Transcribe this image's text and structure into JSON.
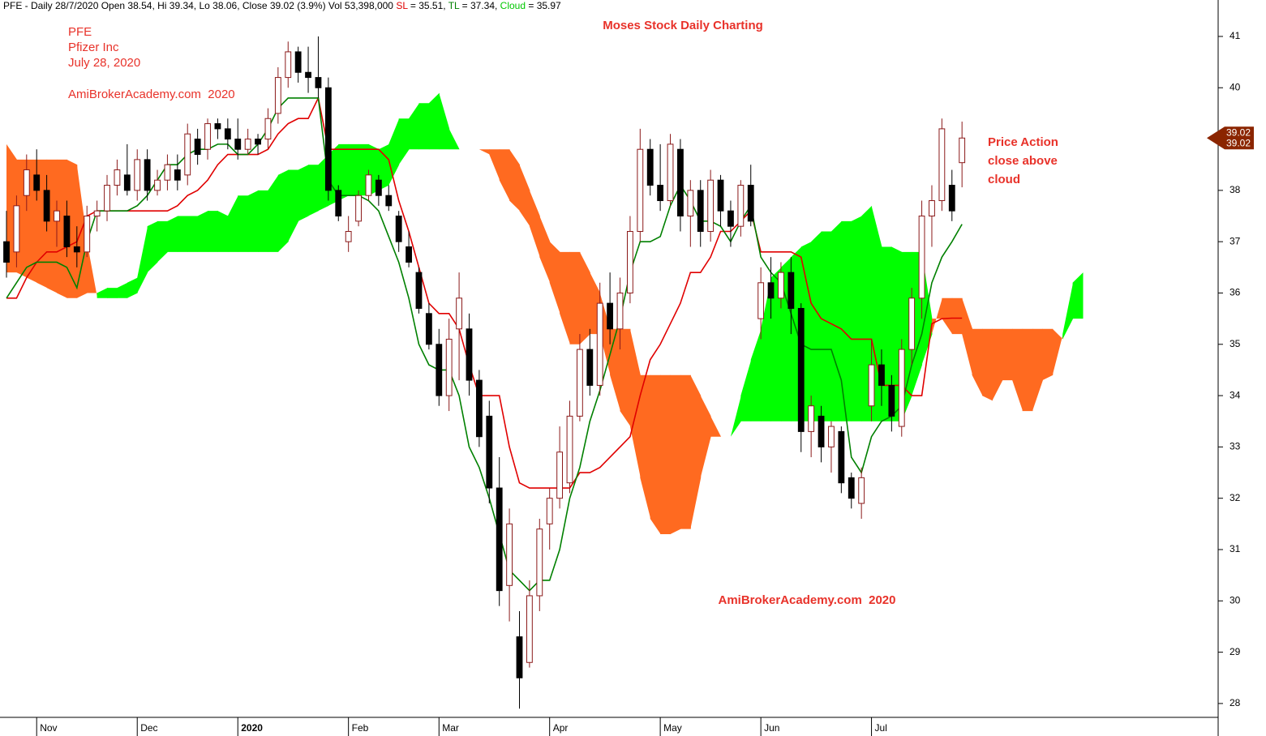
{
  "chart_data": {
    "type": "candlestick",
    "title": "Moses Stock Daily Charting",
    "header": [
      {
        "text": "PFE - Daily 28/7/2020 Open 38.54, Hi 39.34, Lo 38.06, Close 39.02 (3.9%) Vol 53,398,000 ",
        "color": "#000000"
      },
      {
        "text": "SL",
        "color": "#e00000"
      },
      {
        "text": " = 35.51, ",
        "color": "#000000"
      },
      {
        "text": "TL",
        "color": "#008000"
      },
      {
        "text": " = 37.34, ",
        "color": "#000000"
      },
      {
        "text": "Cloud",
        "color": "#00c800"
      },
      {
        "text": " = 35.97",
        "color": "#000000"
      }
    ],
    "annotations": [
      "PFE",
      "Pfizer Inc",
      "July 28, 2020",
      "AmiBrokerAcademy.com  2020",
      "AmiBrokerAcademy.com  2020",
      "Price Action",
      "close above",
      "cloud"
    ],
    "categories": [
      null,
      null,
      null,
      "Nov",
      null,
      null,
      null,
      null,
      null,
      null,
      null,
      null,
      null,
      "Dec",
      null,
      null,
      null,
      null,
      null,
      null,
      null,
      null,
      null,
      "2020",
      null,
      null,
      null,
      null,
      null,
      null,
      null,
      null,
      null,
      null,
      "Feb",
      null,
      null,
      null,
      null,
      null,
      null,
      null,
      null,
      "Mar",
      null,
      null,
      null,
      null,
      null,
      null,
      null,
      null,
      null,
      null,
      "Apr",
      null,
      null,
      null,
      null,
      null,
      null,
      null,
      null,
      null,
      null,
      "May",
      null,
      null,
      null,
      null,
      null,
      null,
      null,
      null,
      null,
      "Jun",
      null,
      null,
      null,
      null,
      null,
      null,
      null,
      null,
      null,
      null,
      "Jul",
      null,
      null,
      null,
      null,
      null,
      null,
      null,
      null,
      null,
      null,
      null,
      null,
      null,
      null,
      null,
      null,
      null,
      null,
      null,
      null,
      null
    ],
    "open": [
      37.0,
      36.8,
      37.9,
      38.3,
      38.0,
      37.4,
      37.5,
      36.9,
      36.8,
      37.5,
      37.6,
      38.1,
      38.3,
      38.0,
      38.6,
      38.0,
      38.2,
      38.4,
      38.3,
      39.0,
      38.8,
      39.3,
      39.2,
      39.0,
      38.8,
      39.0,
      39.0,
      39.5,
      40.2,
      40.7,
      40.3,
      40.2,
      40.0,
      38.0,
      37.0,
      37.4,
      37.9,
      38.2,
      37.9,
      37.5,
      36.9,
      36.4,
      35.6,
      35.0,
      34.0,
      35.3,
      35.3,
      34.3,
      33.6,
      32.2,
      30.3,
      29.3,
      28.8,
      30.1,
      31.5,
      32.0,
      32.3,
      33.6,
      34.9,
      34.2,
      35.8,
      35.3,
      36.0,
      37.2,
      38.8,
      38.1,
      37.8,
      38.8,
      37.5,
      38.0,
      37.2,
      38.2,
      37.6,
      37.3,
      38.1,
      35.5,
      36.2,
      35.9,
      36.4,
      35.7,
      33.3,
      33.6,
      33.0,
      33.3,
      32.4,
      31.9,
      33.8,
      34.6,
      34.2,
      33.4,
      34.9,
      35.9,
      37.5,
      37.8,
      38.1,
      38.54,
      null,
      null,
      null,
      null,
      null,
      null,
      null,
      null,
      null,
      null,
      null,
      null
    ],
    "high": [
      37.6,
      37.9,
      38.7,
      38.8,
      38.3,
      37.8,
      37.8,
      37.3,
      37.7,
      37.8,
      38.3,
      38.6,
      38.9,
      38.8,
      38.8,
      38.4,
      38.7,
      38.7,
      39.3,
      39.2,
      39.4,
      39.4,
      39.4,
      39.4,
      39.2,
      39.1,
      39.6,
      40.4,
      40.9,
      40.8,
      40.8,
      41.0,
      40.2,
      38.1,
      37.5,
      38.0,
      38.4,
      38.3,
      38.1,
      37.6,
      37.2,
      36.5,
      35.8,
      35.3,
      35.5,
      36.4,
      35.6,
      34.5,
      33.9,
      32.8,
      31.8,
      29.8,
      30.4,
      31.6,
      32.2,
      33.4,
      33.9,
      35.2,
      35.3,
      36.2,
      36.4,
      36.3,
      37.5,
      39.2,
      39.0,
      38.9,
      39.1,
      39.0,
      38.2,
      38.2,
      38.4,
      38.3,
      37.8,
      38.2,
      38.5,
      36.5,
      36.7,
      36.6,
      36.7,
      35.8,
      34.0,
      33.8,
      33.5,
      33.4,
      32.5,
      32.6,
      35.1,
      34.9,
      34.4,
      35.1,
      36.1,
      37.8,
      38.1,
      39.4,
      38.4,
      39.34,
      null,
      null,
      null,
      null,
      null,
      null,
      null,
      null,
      null,
      null,
      null,
      null
    ],
    "low": [
      36.3,
      36.5,
      37.6,
      37.8,
      37.2,
      36.9,
      36.7,
      36.5,
      36.7,
      37.2,
      37.4,
      37.9,
      37.9,
      37.8,
      37.8,
      37.9,
      38.0,
      38.0,
      38.1,
      38.5,
      38.6,
      39.0,
      38.8,
      38.6,
      38.7,
      38.7,
      38.8,
      39.3,
      40.0,
      40.1,
      39.9,
      39.8,
      37.8,
      37.4,
      36.8,
      37.3,
      37.8,
      37.7,
      37.6,
      36.8,
      36.5,
      35.6,
      34.9,
      33.8,
      33.7,
      34.3,
      34.0,
      33.0,
      31.9,
      29.9,
      29.6,
      27.9,
      28.7,
      29.8,
      31.0,
      31.8,
      32.1,
      33.5,
      34.0,
      34.0,
      35.0,
      34.9,
      35.8,
      37.0,
      37.9,
      37.6,
      37.7,
      37.2,
      36.9,
      36.9,
      37.0,
      37.3,
      36.9,
      37.1,
      37.3,
      35.1,
      35.5,
      35.7,
      35.2,
      32.9,
      32.8,
      32.7,
      32.5,
      32.1,
      31.8,
      31.6,
      33.5,
      33.8,
      33.3,
      33.2,
      34.6,
      35.5,
      36.9,
      37.6,
      37.4,
      38.06,
      null,
      null,
      null,
      null,
      null,
      null,
      null,
      null,
      null,
      null,
      null,
      null
    ],
    "close": [
      36.6,
      37.7,
      38.4,
      38.0,
      37.4,
      37.6,
      36.9,
      36.8,
      37.5,
      37.6,
      38.1,
      38.4,
      38.0,
      38.6,
      38.0,
      38.2,
      38.5,
      38.2,
      39.1,
      38.7,
      39.3,
      39.2,
      39.0,
      38.8,
      39.0,
      38.9,
      39.4,
      40.2,
      40.7,
      40.3,
      40.2,
      40.0,
      38.0,
      37.5,
      37.2,
      37.9,
      38.3,
      37.9,
      37.7,
      37.0,
      36.6,
      35.7,
      35.0,
      34.0,
      35.1,
      35.9,
      34.3,
      33.2,
      32.2,
      30.2,
      31.5,
      28.5,
      30.1,
      31.4,
      32.0,
      32.9,
      33.6,
      34.9,
      34.2,
      35.8,
      35.3,
      36.0,
      37.2,
      38.8,
      38.1,
      37.8,
      38.9,
      37.5,
      38.0,
      37.2,
      38.2,
      37.6,
      37.3,
      38.1,
      37.4,
      36.2,
      35.9,
      36.4,
      35.7,
      33.3,
      33.8,
      33.0,
      33.4,
      32.3,
      32.0,
      32.4,
      34.6,
      34.2,
      33.6,
      34.9,
      35.9,
      37.5,
      37.8,
      39.2,
      37.6,
      39.02,
      null,
      null,
      null,
      null,
      null,
      null,
      null,
      null,
      null,
      null,
      null,
      null
    ],
    "up_color": "#8b1a1a",
    "down_color": "#000000",
    "lines": [
      {
        "color": "#e00000",
        "values": [
          35.9,
          35.9,
          36.3,
          36.6,
          36.8,
          36.8,
          36.9,
          37.0,
          37.5,
          37.6,
          37.6,
          37.6,
          37.6,
          37.6,
          37.6,
          37.6,
          37.6,
          37.7,
          37.9,
          38.0,
          38.2,
          38.5,
          38.7,
          38.7,
          38.7,
          38.7,
          38.8,
          39.1,
          39.3,
          39.4,
          39.4,
          39.8,
          38.8,
          38.8,
          38.8,
          38.8,
          38.8,
          38.8,
          38.6,
          37.8,
          37.2,
          36.5,
          35.8,
          35.6,
          35.6,
          35.3,
          34.6,
          34.0,
          34.0,
          34.0,
          33.0,
          32.3,
          32.2,
          32.2,
          32.2,
          32.2,
          32.2,
          32.5,
          32.5,
          32.6,
          32.8,
          33.0,
          33.2,
          34.0,
          34.7,
          35.0,
          35.4,
          35.8,
          36.4,
          36.4,
          36.7,
          37.2,
          37.2,
          37.4,
          37.6,
          36.8,
          36.8,
          36.8,
          36.8,
          36.7,
          35.8,
          35.5,
          35.4,
          35.3,
          35.1,
          35.1,
          35.1,
          34.2,
          34.2,
          34.2,
          34.0,
          34.0,
          35.4,
          35.5,
          35.51,
          35.51,
          null,
          null,
          null,
          null,
          null,
          null,
          null,
          null,
          null,
          null,
          null,
          null
        ]
      },
      {
        "color": "#008000",
        "values": [
          35.9,
          36.2,
          36.5,
          36.6,
          36.6,
          36.6,
          36.5,
          36.1,
          37.0,
          37.6,
          37.6,
          37.6,
          37.6,
          37.7,
          37.9,
          38.2,
          38.5,
          38.5,
          38.7,
          38.8,
          38.8,
          38.9,
          38.9,
          38.7,
          38.7,
          38.9,
          39.2,
          39.6,
          39.8,
          39.8,
          39.8,
          39.8,
          38.2,
          37.9,
          37.9,
          37.9,
          37.8,
          37.6,
          37.1,
          36.6,
          35.9,
          35.0,
          34.6,
          34.5,
          34.5,
          34.0,
          33.0,
          32.6,
          32.0,
          31.3,
          30.6,
          30.4,
          30.2,
          30.4,
          30.4,
          31.0,
          32.0,
          32.6,
          33.5,
          34.1,
          34.8,
          35.5,
          36.4,
          37.0,
          37.0,
          37.1,
          37.7,
          38.1,
          37.8,
          37.4,
          37.4,
          37.3,
          37.0,
          37.4,
          37.7,
          36.7,
          36.4,
          36.2,
          35.6,
          35.0,
          34.9,
          34.9,
          34.9,
          34.3,
          32.8,
          32.5,
          33.2,
          33.5,
          33.6,
          33.8,
          34.6,
          35.2,
          36.2,
          36.7,
          37.0,
          37.34,
          null,
          null,
          null,
          null,
          null,
          null,
          null,
          null,
          null,
          null,
          null,
          null
        ]
      }
    ],
    "cloud": {
      "up_color": "#00ff00",
      "down_color": "#ff6a20",
      "span_a": [
        36.4,
        36.4,
        36.3,
        36.2,
        36.1,
        36.0,
        35.9,
        35.9,
        36.0,
        36.0,
        36.1,
        36.1,
        36.2,
        36.3,
        37.3,
        37.4,
        37.4,
        37.5,
        37.5,
        37.5,
        37.6,
        37.6,
        37.5,
        37.9,
        37.9,
        38.0,
        38.0,
        38.3,
        38.4,
        38.4,
        38.5,
        38.5,
        38.7,
        38.9,
        38.9,
        38.9,
        38.9,
        38.8,
        38.9,
        39.4,
        39.4,
        39.7,
        39.7,
        39.9,
        39.2,
        38.8,
        38.8,
        38.8,
        38.7,
        38.2,
        37.8,
        37.6,
        37.3,
        36.7,
        36.2,
        35.6,
        35.0,
        35.0,
        35.2,
        35.2,
        34.4,
        33.7,
        33.4,
        32.4,
        31.6,
        31.3,
        31.3,
        31.4,
        31.4,
        32.4,
        33.2,
        33.2,
        33.2,
        34.0,
        34.7,
        35.3,
        36.3,
        36.5,
        36.7,
        36.9,
        37.0,
        37.2,
        37.2,
        37.4,
        37.4,
        37.5,
        37.7,
        36.9,
        36.9,
        36.8,
        36.8,
        36.8,
        35.5,
        35.5,
        35.2,
        35.2,
        34.4,
        34.0,
        33.9,
        34.3,
        34.3,
        33.7,
        33.7,
        34.3,
        34.4,
        35.2,
        36.2,
        36.4
      ],
      "span_b": [
        38.9,
        38.6,
        38.6,
        38.6,
        38.6,
        38.6,
        38.6,
        38.5,
        37.0,
        35.9,
        35.9,
        35.9,
        35.9,
        36.0,
        36.4,
        36.6,
        36.8,
        36.8,
        36.8,
        36.8,
        36.8,
        36.8,
        36.8,
        36.8,
        36.8,
        36.8,
        36.8,
        36.8,
        37.0,
        37.4,
        37.5,
        37.6,
        37.7,
        37.8,
        37.9,
        37.9,
        37.9,
        38.0,
        38.1,
        38.5,
        38.8,
        38.8,
        38.8,
        38.8,
        38.8,
        38.8,
        38.8,
        38.8,
        38.8,
        38.8,
        38.8,
        38.5,
        38.0,
        37.5,
        37.0,
        36.8,
        36.8,
        36.8,
        36.4,
        36.0,
        35.3,
        35.3,
        35.3,
        34.4,
        34.4,
        34.4,
        34.4,
        34.4,
        34.4,
        34.0,
        33.6,
        33.2,
        33.2,
        33.5,
        33.5,
        33.5,
        33.5,
        33.5,
        33.5,
        33.5,
        33.5,
        33.5,
        33.5,
        33.5,
        33.5,
        33.5,
        33.5,
        33.5,
        33.5,
        33.5,
        34.0,
        34.6,
        35.2,
        35.9,
        35.9,
        35.9,
        35.3,
        35.3,
        35.3,
        35.3,
        35.3,
        35.3,
        35.3,
        35.3,
        35.3,
        35.1,
        35.5,
        35.5
      ]
    },
    "ylim": [
      27.73,
      41.71
    ],
    "yticks": [
      28,
      29,
      30,
      31,
      32,
      33,
      34,
      35,
      36,
      37,
      38,
      39,
      40,
      41
    ],
    "price_box_color": "#8b2500"
  }
}
